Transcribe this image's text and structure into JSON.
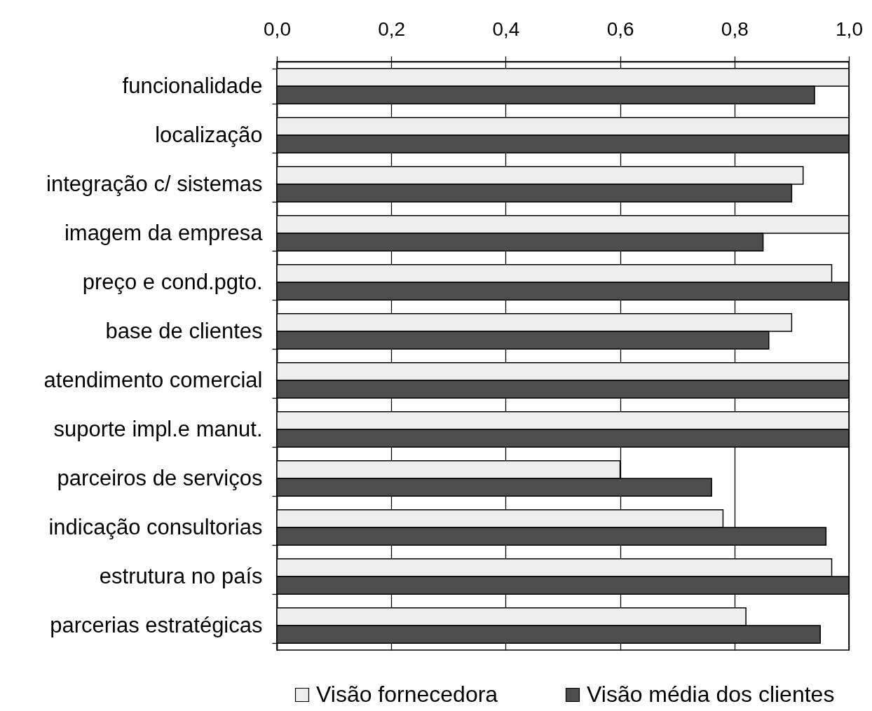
{
  "chart_data": {
    "type": "bar",
    "orientation": "horizontal",
    "categories": [
      "funcionalidade",
      "localização",
      "integração c/ sistemas",
      "imagem da empresa",
      "preço e cond.pgto.",
      "base de clientes",
      "atendimento comercial",
      "suporte impl.e manut.",
      "parceiros de serviços",
      "indicação consultorias",
      "estrutura no país",
      "parcerias estratégicas"
    ],
    "series": [
      {
        "name": "Visão fornecedora",
        "color": "#eeeeee",
        "values": [
          1.0,
          1.0,
          0.92,
          1.0,
          0.97,
          0.9,
          1.0,
          1.0,
          0.6,
          0.78,
          0.97,
          0.82
        ]
      },
      {
        "name": "Visão média dos clientes",
        "color": "#4d4d4d",
        "values": [
          0.94,
          1.0,
          0.9,
          0.85,
          1.0,
          0.86,
          1.0,
          1.0,
          0.76,
          0.96,
          1.0,
          0.95
        ]
      }
    ],
    "xlim": [
      0,
      1
    ],
    "xticks": [
      {
        "value": 0,
        "label": "0,0"
      },
      {
        "value": 0.2,
        "label": "0,2"
      },
      {
        "value": 0.4,
        "label": "0,4"
      },
      {
        "value": 0.6,
        "label": "0,6"
      },
      {
        "value": 0.8,
        "label": "0,8"
      },
      {
        "value": 1,
        "label": "1,0"
      }
    ],
    "grid": "x",
    "legend": "bottom"
  }
}
